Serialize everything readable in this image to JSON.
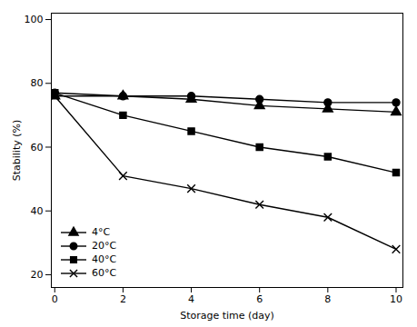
{
  "chart_data": {
    "type": "line",
    "x": [
      0,
      2,
      4,
      6,
      8,
      10
    ],
    "series": [
      {
        "name": "4°C",
        "color": "#000000",
        "marker": "triangle",
        "line_style": "solid",
        "values": [
          76,
          76,
          75,
          73,
          72,
          71
        ]
      },
      {
        "name": "20°C",
        "color": "#000000",
        "marker": "circle",
        "line_style": "solid",
        "values": [
          77,
          76,
          76,
          75,
          74,
          74
        ]
      },
      {
        "name": "40°C",
        "color": "#000000",
        "marker": "square",
        "line_style": "solid",
        "values": [
          77,
          70,
          65,
          60,
          57,
          52
        ]
      },
      {
        "name": "60°C",
        "color": "#000000",
        "marker": "x",
        "line_style": "solid",
        "values": [
          76,
          51,
          47,
          42,
          38,
          28
        ]
      }
    ],
    "xlabel": "Storage time (day)",
    "ylabel": "Stability (%)",
    "xlim": [
      -0.1,
      10.2
    ],
    "ylim": [
      16,
      102
    ],
    "xticks": [
      0,
      2,
      4,
      6,
      8,
      10
    ],
    "yticks": [
      20,
      40,
      60,
      80,
      100
    ],
    "legend": "lower left"
  }
}
